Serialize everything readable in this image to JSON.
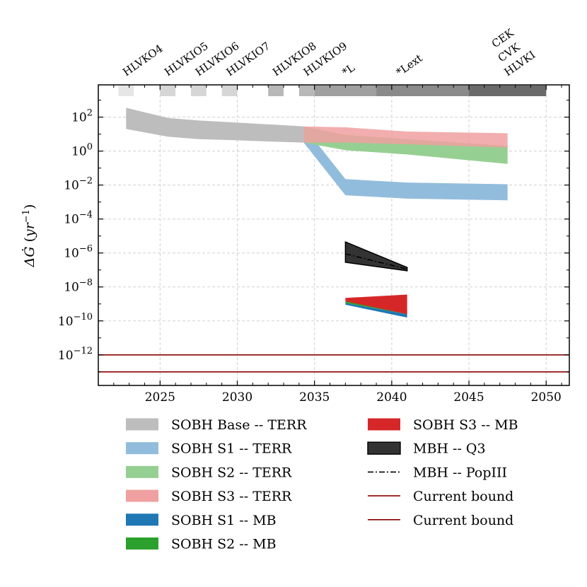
{
  "chart_data": {
    "type": "area",
    "title": "",
    "xlabel": "",
    "ylabel": "ΔĠ (yr⁻¹)",
    "xlim": [
      2021.0,
      2051.5
    ],
    "ylim_log10": [
      -13.8,
      3.9
    ],
    "yscale": "log",
    "grid": true,
    "x_ticks": [
      2025,
      2030,
      2035,
      2040,
      2045,
      2050
    ],
    "x_tick_labels": [
      "2025",
      "2030",
      "2035",
      "2040",
      "2045",
      "2050"
    ],
    "y_ticks_log10": [
      2,
      0,
      -2,
      -4,
      -6,
      -8,
      -10,
      -12
    ],
    "y_tick_labels": [
      {
        "base": "10",
        "exp": "2"
      },
      {
        "base": "10",
        "exp": "0"
      },
      {
        "base": "10",
        "exp": "−2"
      },
      {
        "base": "10",
        "exp": "−4"
      },
      {
        "base": "10",
        "exp": "−6"
      },
      {
        "base": "10",
        "exp": "−8"
      },
      {
        "base": "10",
        "exp": "−10"
      },
      {
        "base": "10",
        "exp": "−12"
      }
    ],
    "detector_periods": [
      {
        "label": "HLVKO4",
        "start": 2022.3,
        "end": 2023.3,
        "shade": "#e6e6e6",
        "label_x": 2022.8
      },
      {
        "label": "HLVKIO5",
        "start": 2025.0,
        "end": 2026.0,
        "shade": "#d6d6d6",
        "label_x": 2025.5
      },
      {
        "label": "HLVKIO6",
        "start": 2027.0,
        "end": 2028.0,
        "shade": "#d6d6d6",
        "label_x": 2027.5
      },
      {
        "label": "HLVKIO7",
        "start": 2029.0,
        "end": 2030.0,
        "shade": "#d6d6d6",
        "label_x": 2029.5
      },
      {
        "label": "HLVKIO8",
        "start": 2032.0,
        "end": 2033.0,
        "shade": "#b8b8b8",
        "label_x": 2032.5
      },
      {
        "label": "HLVKIO9",
        "start": 2034.0,
        "end": 2035.0,
        "shade": "#b8b8b8",
        "label_x": 2034.5
      },
      {
        "label": "*L",
        "start": 2035.0,
        "end": 2039.0,
        "shade": "#a0a0a0",
        "label_x": 2037.0
      },
      {
        "label": "*Lext",
        "start": 2039.0,
        "end": 2045.0,
        "shade": "#8a8a8a",
        "label_x": 2040.5
      },
      {
        "label": "HLVKI",
        "start": 2045.0,
        "end": 2050.0,
        "shade": "#6a6a6a",
        "label_x": 2047.5
      },
      {
        "label": "CVK",
        "start": 2045.0,
        "end": 2050.0,
        "shade": "#6a6a6a",
        "label_x": 2047.0
      },
      {
        "label": "CEK",
        "start": 2045.0,
        "end": 2050.0,
        "shade": "#6a6a6a",
        "label_x": 2046.5
      }
    ],
    "series": [
      {
        "name": "SOBH Base -- TERR",
        "kind": "band",
        "color": "#bdbdbd",
        "opacity": 1,
        "x": [
          2022.8,
          2025.5,
          2027.5,
          2029.5,
          2032.5,
          2034.3
        ],
        "low_log10": [
          1.3,
          0.85,
          0.7,
          0.65,
          0.55,
          0.5
        ],
        "high_log10": [
          2.55,
          1.95,
          1.8,
          1.7,
          1.55,
          1.45
        ]
      },
      {
        "name": "SOBH S1 -- TERR",
        "kind": "band",
        "color": "#92bcdc",
        "opacity": 1,
        "x": [
          2034.3,
          2037.0,
          2041.0,
          2047.5
        ],
        "low_log10": [
          0.5,
          -2.6,
          -2.8,
          -2.9
        ],
        "high_log10": [
          1.45,
          -1.65,
          -1.85,
          -1.95
        ]
      },
      {
        "name": "SOBH S2 -- TERR",
        "kind": "band",
        "color": "#96cf92",
        "opacity": 1,
        "x": [
          2034.3,
          2037.0,
          2041.0,
          2047.5
        ],
        "low_log10": [
          0.5,
          0.05,
          -0.2,
          -0.75
        ],
        "high_log10": [
          1.45,
          0.95,
          0.7,
          0.3
        ]
      },
      {
        "name": "SOBH S3 -- TERR",
        "kind": "band",
        "color": "#f0a0a0",
        "opacity": 0.85,
        "x": [
          2034.3,
          2037.0,
          2041.0,
          2047.5
        ],
        "low_log10": [
          0.5,
          0.5,
          0.4,
          0.2
        ],
        "high_log10": [
          1.45,
          1.4,
          1.15,
          1.05
        ]
      },
      {
        "name": "SOBH S1 -- MB",
        "kind": "band",
        "color": "#1f77b4",
        "opacity": 1,
        "x": [
          2037.0,
          2041.0
        ],
        "low_log10": [
          -9.05,
          -9.8
        ],
        "high_log10": [
          -8.95,
          -9.6
        ]
      },
      {
        "name": "SOBH S2 -- MB",
        "kind": "band",
        "color": "#2ca02c",
        "opacity": 1,
        "x": [
          2037.0,
          2041.0
        ],
        "low_log10": [
          -8.95,
          -9.6
        ],
        "high_log10": [
          -8.85,
          -9.4
        ]
      },
      {
        "name": "SOBH S3 -- MB",
        "kind": "band",
        "color": "#d62728",
        "opacity": 1,
        "x": [
          2037.0,
          2041.0
        ],
        "low_log10": [
          -8.85,
          -9.6
        ],
        "high_log10": [
          -8.65,
          -8.45
        ]
      },
      {
        "name": "MBH -- Q3",
        "kind": "band",
        "color": "#333333",
        "opacity": 1,
        "x": [
          2037.0,
          2041.0
        ],
        "low_log10": [
          -6.55,
          -7.05
        ],
        "high_log10": [
          -5.35,
          -6.85
        ]
      },
      {
        "name": "MBH -- PopIII",
        "kind": "line",
        "color": "#000000",
        "dash": "8 3 2 3",
        "x": [
          2037.0,
          2041.0
        ],
        "y_log10": [
          -6.05,
          -6.95
        ]
      },
      {
        "name": "Current bound",
        "kind": "hline",
        "color": "#8b0000",
        "y_log10": -12.0
      },
      {
        "name": "Current bound",
        "kind": "hline",
        "color": "#8b0000",
        "y_log10": -13.0
      }
    ],
    "legend": {
      "placement": "below",
      "columns": 2,
      "entries": [
        {
          "label": "SOBH Base -- TERR",
          "kind": "patch",
          "color": "#bdbdbd"
        },
        {
          "label": "SOBH S1 -- TERR",
          "kind": "patch",
          "color": "#92bcdc"
        },
        {
          "label": "SOBH S2 -- TERR",
          "kind": "patch",
          "color": "#96cf92"
        },
        {
          "label": "SOBH S3 -- TERR",
          "kind": "patch",
          "color": "#f0a0a0"
        },
        {
          "label": "SOBH S1 -- MB",
          "kind": "patch",
          "color": "#1f77b4"
        },
        {
          "label": "SOBH S2 -- MB",
          "kind": "patch",
          "color": "#2ca02c"
        },
        {
          "label": "SOBH S3 -- MB",
          "kind": "patch",
          "color": "#d62728"
        },
        {
          "label": "MBH -- Q3",
          "kind": "patch-outlined",
          "color": "#333333"
        },
        {
          "label": "MBH -- PopIII",
          "kind": "dashdot",
          "color": "#000000"
        },
        {
          "label": "Current bound",
          "kind": "line",
          "color": "#8b0000"
        },
        {
          "label": "Current bound",
          "kind": "line",
          "color": "#8b0000"
        }
      ]
    }
  }
}
